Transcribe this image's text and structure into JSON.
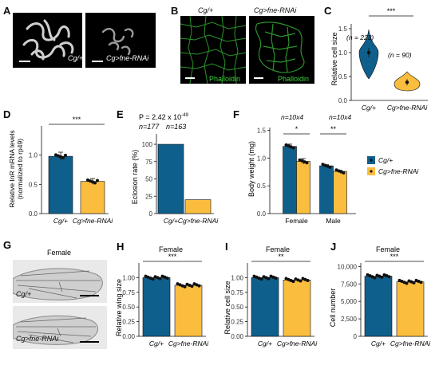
{
  "panels": {
    "A": {
      "label": "A",
      "img1": "Cg/+",
      "img2": "Cg>fne-RNAi"
    },
    "B": {
      "label": "B",
      "img1": "Cg/+",
      "img2": "Cg>fne-RNAi",
      "stain1": "Phalloidin",
      "stain2": "Phalloidin"
    },
    "C": {
      "label": "C",
      "ylabel": "Relative cell size",
      "sig": "***",
      "n1": "(n = 223)",
      "n2": "(n = 90)"
    },
    "D": {
      "label": "D",
      "ylabel_l1": "Relative InR mRNA levels",
      "ylabel_l2": "(normalized to rp49)",
      "sig": "***"
    },
    "E": {
      "label": "E",
      "ylabel": "Eclosion rate (%)",
      "pval": "P = 2.42 x 10",
      "pexp": "-49",
      "n1": "n=177",
      "n2": "n=163"
    },
    "F": {
      "label": "F",
      "ylabel": "Body weight (mg)",
      "n1": "n=10x4",
      "n2": "n=10x4",
      "sig1": "*",
      "sig2": "**"
    },
    "G": {
      "label": "G",
      "title": "Female",
      "img1": "Cg/+",
      "img2": "Cg>fne-RNAi"
    },
    "H": {
      "label": "H",
      "title": "Female",
      "ylabel": "Relative wing size",
      "sig": "***"
    },
    "I": {
      "label": "I",
      "title": "Female",
      "ylabel": "Relative cell size",
      "sig": "**"
    },
    "J": {
      "label": "J",
      "title": "Female",
      "ylabel": "Cell number",
      "sig": "***"
    }
  },
  "legend": [
    "Cg/+",
    "Cg>fne-RNAi"
  ],
  "colors": {
    "control": "#0f5f8c",
    "rnai": "#fbbd3e",
    "phalloidin": "#3fd03f"
  },
  "chart_data": [
    {
      "id": "C",
      "type": "violin",
      "categories": [
        "Cg/+",
        "Cg>fne-RNAi"
      ],
      "values": [
        1.0,
        0.38
      ],
      "ylim": [
        0.0,
        1.6
      ],
      "yticks": [
        "0.0",
        "0.5",
        "1.0",
        "1.5"
      ]
    },
    {
      "id": "D",
      "type": "bar",
      "categories": [
        "Cg/+",
        "Cg>fne-RNAi"
      ],
      "values": [
        0.98,
        0.55
      ],
      "errors": [
        0.07,
        0.05
      ],
      "ylim": [
        0,
        1.5
      ],
      "yticks": [
        "0.0",
        "0.5",
        "1.0"
      ]
    },
    {
      "id": "E",
      "type": "bar",
      "categories": [
        "Cg/+",
        "Cg>fne-RNAi"
      ],
      "values": [
        100,
        20
      ],
      "ylim": [
        0,
        115
      ],
      "yticks": [
        "0",
        "25",
        "50",
        "75",
        "100"
      ]
    },
    {
      "id": "F",
      "type": "bar",
      "groups": [
        "Female",
        "Male"
      ],
      "series": [
        {
          "name": "Cg/+",
          "values": [
            1.21,
            0.86
          ]
        },
        {
          "name": "Cg>fne-RNAi",
          "values": [
            0.94,
            0.76
          ]
        }
      ],
      "errors": [
        [
          0.04,
          0.02
        ],
        [
          0.05,
          0.02
        ]
      ],
      "ylim": [
        0,
        1.55
      ],
      "yticks": [
        "0.0",
        "0.5",
        "1.0",
        "1.5"
      ]
    },
    {
      "id": "H",
      "type": "bar",
      "categories": [
        "Cg/+",
        "Cg>fne-RNAi"
      ],
      "values": [
        1.0,
        0.87
      ],
      "ylim": [
        0,
        1.25
      ],
      "yticks": [
        "0.00",
        "0.25",
        "0.50",
        "0.75",
        "1.00"
      ]
    },
    {
      "id": "I",
      "type": "bar",
      "categories": [
        "Cg/+",
        "Cg>fne-RNAi"
      ],
      "values": [
        1.0,
        0.96
      ],
      "ylim": [
        0,
        1.25
      ],
      "yticks": [
        "0.00",
        "0.25",
        "0.50",
        "0.75",
        "1.00"
      ]
    },
    {
      "id": "J",
      "type": "bar",
      "categories": [
        "Cg/+",
        "Cg>fne-RNAi"
      ],
      "values": [
        8600,
        7800
      ],
      "ylim": [
        0,
        10500
      ],
      "yticks": [
        "0",
        "2,500",
        "5,000",
        "7,500",
        "10,000"
      ]
    }
  ]
}
